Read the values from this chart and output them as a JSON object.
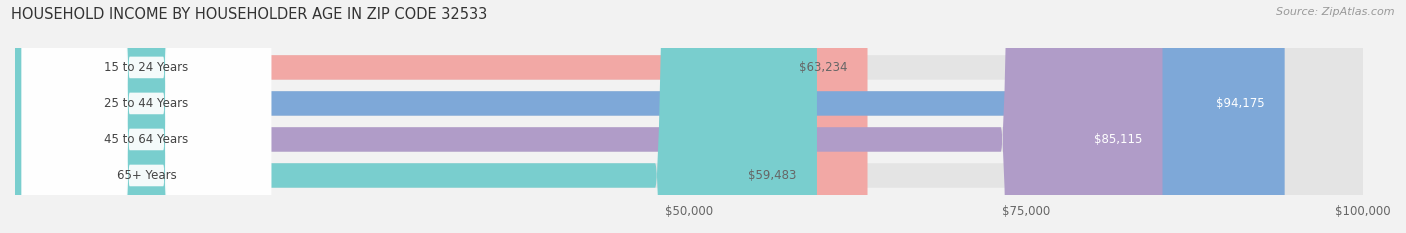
{
  "title": "HOUSEHOLD INCOME BY HOUSEHOLDER AGE IN ZIP CODE 32533",
  "source": "Source: ZipAtlas.com",
  "categories": [
    "15 to 24 Years",
    "25 to 44 Years",
    "45 to 64 Years",
    "65+ Years"
  ],
  "values": [
    63234,
    94175,
    85115,
    59483
  ],
  "bar_colors": [
    "#f2a8a5",
    "#7ea8d8",
    "#b09cc8",
    "#79cece"
  ],
  "label_colors": [
    "#666666",
    "#ffffff",
    "#ffffff",
    "#666666"
  ],
  "value_labels": [
    "$63,234",
    "$94,175",
    "$85,115",
    "$59,483"
  ],
  "xlim": [
    0,
    100000
  ],
  "xticks": [
    50000,
    75000,
    100000
  ],
  "xticklabels": [
    "$50,000",
    "$75,000",
    "$100,000"
  ],
  "background_color": "#f2f2f2",
  "bar_background_color": "#e4e4e4",
  "title_fontsize": 10.5,
  "source_fontsize": 8,
  "bar_height": 0.68,
  "figsize": [
    14.06,
    2.33
  ]
}
